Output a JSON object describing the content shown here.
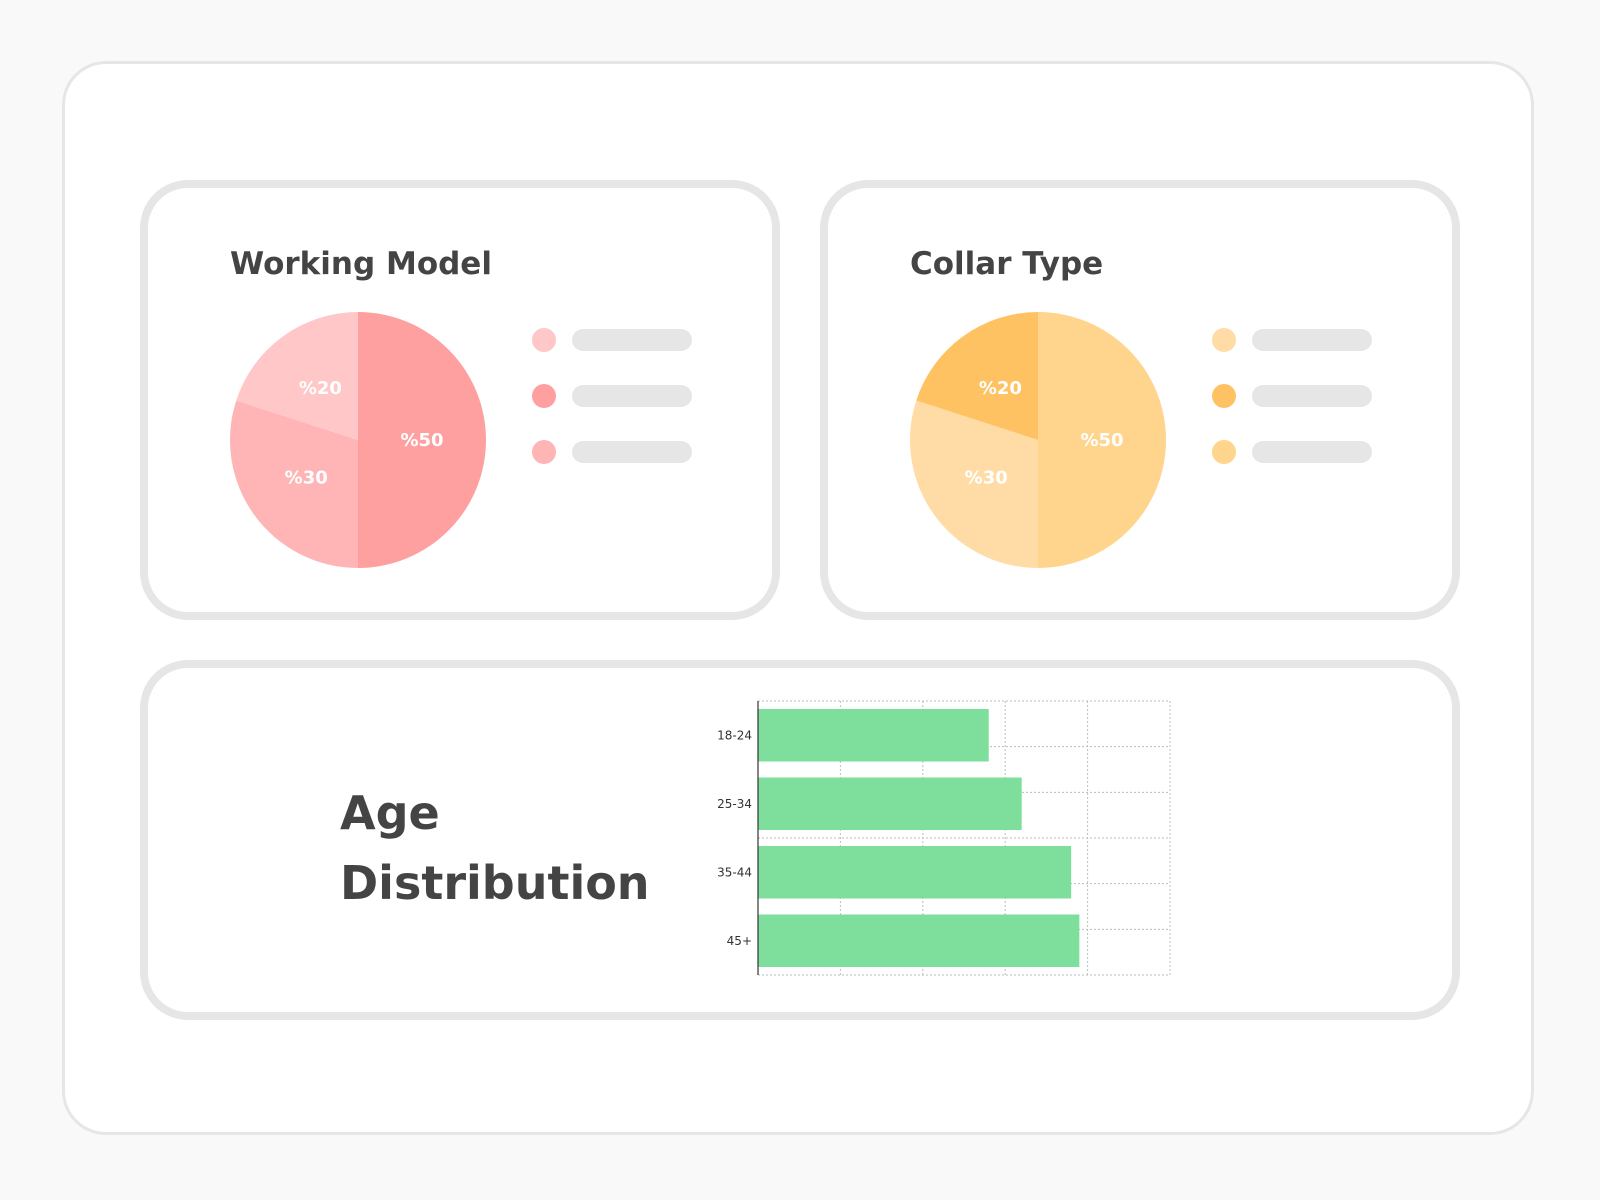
{
  "chart_data": [
    {
      "type": "pie",
      "title": "Working Model",
      "slices": [
        {
          "label": "%50",
          "value": 50,
          "color": "#ffa0a0"
        },
        {
          "label": "%30",
          "value": 30,
          "color": "#ffb5b5"
        },
        {
          "label": "%20",
          "value": 20,
          "color": "#ffc7c7"
        }
      ],
      "legend_colors": [
        "#ffc7c7",
        "#ff9f9f",
        "#ffb5b5"
      ]
    },
    {
      "type": "pie",
      "title": "Collar Type",
      "slices": [
        {
          "label": "%50",
          "value": 50,
          "color": "#ffd48d"
        },
        {
          "label": "%30",
          "value": 30,
          "color": "#ffdca6"
        },
        {
          "label": "%20",
          "value": 20,
          "color": "#ffc263"
        }
      ],
      "legend_colors": [
        "#ffdca6",
        "#ffc263",
        "#ffd48d"
      ]
    },
    {
      "type": "bar",
      "orientation": "horizontal",
      "title": "Age Distribution",
      "title_lines": [
        "Age",
        "Distribution"
      ],
      "categories": [
        "18-24",
        "25-34",
        "35-44",
        "45+"
      ],
      "values": [
        2.8,
        3.2,
        3.8,
        3.9
      ],
      "xlim": [
        0,
        5
      ],
      "grid": true,
      "bar_color": "#7ddf9b"
    }
  ]
}
